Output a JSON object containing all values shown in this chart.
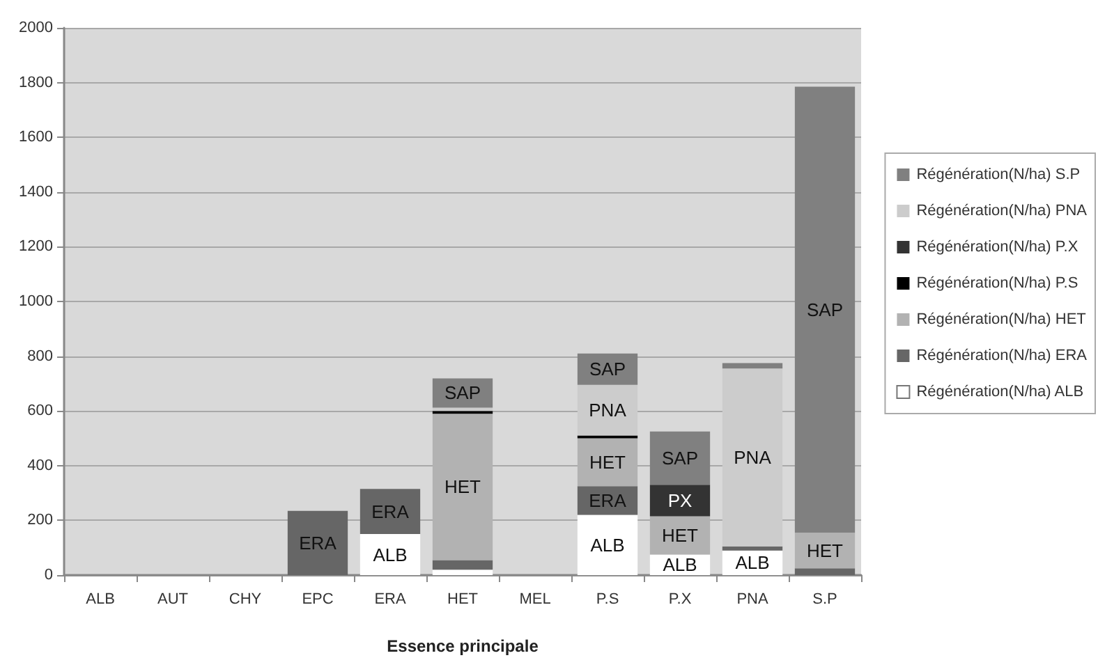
{
  "chart_data": {
    "type": "bar",
    "stacked": true,
    "xlabel": "Essence principale",
    "categories": [
      "ALB",
      "AUT",
      "CHY",
      "EPC",
      "ERA",
      "HET",
      "MEL",
      "P.S",
      "P.X",
      "PNA",
      "S.P"
    ],
    "series": [
      {
        "name": "Régénération(N/ha) ALB",
        "color": "#ffffff",
        "values": [
          null,
          null,
          null,
          null,
          150,
          20,
          null,
          220,
          75,
          90,
          null
        ],
        "value_labels": [
          null,
          null,
          null,
          null,
          "ALB",
          null,
          null,
          "ALB",
          "ALB",
          "ALB",
          null
        ]
      },
      {
        "name": "Régénération(N/ha) ERA",
        "color": "#666666",
        "values": [
          null,
          null,
          null,
          235,
          165,
          35,
          null,
          105,
          null,
          15,
          25
        ],
        "value_labels": [
          null,
          null,
          null,
          "ERA",
          "ERA",
          null,
          null,
          "ERA",
          null,
          null,
          null
        ]
      },
      {
        "name": "Régénération(N/ha) HET",
        "color": "#b2b2b2",
        "values": [
          null,
          null,
          null,
          null,
          null,
          535,
          null,
          175,
          140,
          null,
          130
        ],
        "value_labels": [
          null,
          null,
          null,
          null,
          null,
          "HET",
          null,
          "HET",
          "HET",
          null,
          "HET"
        ]
      },
      {
        "name": "Régénération(N/ha) P.S",
        "color": "#000000",
        "values": [
          null,
          null,
          null,
          null,
          null,
          10,
          null,
          10,
          null,
          null,
          null
        ]
      },
      {
        "name": "Régénération(N/ha) P.X",
        "color": "#333333",
        "values": [
          null,
          null,
          null,
          null,
          null,
          null,
          null,
          null,
          115,
          null,
          null
        ],
        "value_labels": [
          null,
          null,
          null,
          null,
          null,
          null,
          null,
          null,
          "PX",
          null,
          null
        ]
      },
      {
        "name": "Régénération(N/ha) PNA",
        "color": "#cccccc",
        "values": [
          null,
          null,
          null,
          null,
          null,
          12,
          null,
          185,
          null,
          650,
          null
        ],
        "value_labels": [
          null,
          null,
          null,
          null,
          null,
          null,
          null,
          "PNA",
          null,
          "PNA",
          null
        ]
      },
      {
        "name": "Régénération(N/ha) S.P",
        "color": "#808080",
        "values": [
          null,
          null,
          null,
          null,
          null,
          107,
          null,
          115,
          195,
          20,
          1630
        ],
        "value_labels": [
          null,
          null,
          null,
          null,
          null,
          "SAP",
          null,
          "SAP",
          "SAP",
          null,
          "SAP"
        ]
      }
    ],
    "ylim": [
      0,
      2000
    ],
    "yticks": [
      0,
      200,
      400,
      600,
      800,
      1000,
      1200,
      1400,
      1600,
      1800,
      2000
    ],
    "grid": "y",
    "legend": "right"
  }
}
